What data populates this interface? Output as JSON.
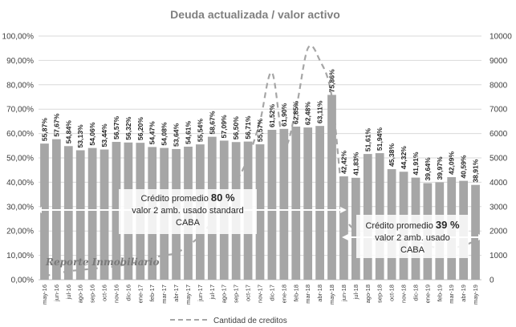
{
  "chart_data": {
    "type": "bar",
    "title": "Deuda actualizada / valor activo",
    "categories": [
      "may-16",
      "jun-16",
      "jul-16",
      "ago-16",
      "sep-16",
      "oct-16",
      "nov-16",
      "dic-16",
      "ene-17",
      "feb-17",
      "mar-17",
      "abr-17",
      "may-17",
      "jun-17",
      "jul-17",
      "ago-17",
      "sep-17",
      "oct-17",
      "nov-17",
      "dic-17",
      "ene-18",
      "feb-18",
      "mar-18",
      "abr-18",
      "may-18",
      "jun-18",
      "jul-18",
      "ago-18",
      "sep-18",
      "oct-18",
      "nov-18",
      "dic-18",
      "ene-19",
      "feb-19",
      "mar-19",
      "abr-19",
      "may-19"
    ],
    "series": [
      {
        "values": [
          55.87,
          57.67,
          54.84,
          53.13,
          54.06,
          53.44,
          56.57,
          56.32,
          56.2,
          54.47,
          54.08,
          53.64,
          54.61,
          55.54,
          58.67,
          57.09,
          56.5,
          56.71,
          55.57,
          61.52,
          61.9,
          62.85,
          62.48,
          63.11,
          75.86,
          42.42,
          41.83,
          51.61,
          51.94,
          45.38,
          44.32,
          41.91,
          39.64,
          39.97,
          42.09,
          40.59,
          38.91
        ],
        "labels": [
          "55,87%",
          "57,67%",
          "54,84%",
          "53,13%",
          "54,06%",
          "53,44%",
          "56,57%",
          "56,32%",
          "56,20%",
          "54,47%",
          "54,08%",
          "53,64%",
          "54,61%",
          "55,54%",
          "58,67%",
          "57,09%",
          "56,50%",
          "56,71%",
          "55,57%",
          "61,52%",
          "61,90%",
          "62,85%",
          "62,48%",
          "63,11%",
          "75,86%",
          "42,42%",
          "41,83%",
          "51,61%",
          "51,94%",
          "45,38%",
          "44,32%",
          "41,91%",
          "39,64%",
          "39,97%",
          "42,09%",
          "40,59%",
          "38,91%"
        ],
        "color": "#a6a6a6",
        "axis": "left"
      },
      {
        "name": "Cantidad de creditos",
        "type": "line",
        "style": "dashed",
        "color": "#a6a6a6",
        "axis": "right",
        "values": [
          150,
          250,
          350,
          400,
          450,
          500,
          550,
          650,
          750,
          900,
          1000,
          1100,
          1400,
          1800,
          2400,
          3200,
          4000,
          5000,
          6500,
          8500,
          5500,
          7000,
          9500,
          9000,
          7500,
          3000,
          2000,
          1800,
          1600,
          1600,
          1700,
          1600,
          1400,
          1300,
          1300,
          1400,
          1600
        ]
      }
    ],
    "y_left": {
      "ylim": [
        0,
        100
      ],
      "ticks": [
        "0,00%",
        "10,00%",
        "20,00%",
        "30,00%",
        "40,00%",
        "50,00%",
        "60,00%",
        "70,00%",
        "80,00%",
        "90,00%",
        "100,00%"
      ]
    },
    "y_right": {
      "ylim": [
        0,
        10000
      ],
      "ticks": [
        "0",
        "1000",
        "2000",
        "3000",
        "4000",
        "5000",
        "6000",
        "7000",
        "8000",
        "9000",
        "10000"
      ]
    },
    "grid": true,
    "legend": {
      "position": "bottom",
      "entries": [
        "Cantidad de creditos"
      ]
    },
    "annotations": [
      {
        "id": "anno1",
        "line1_prefix": "Crédito promedio ",
        "line1_value": "80 %",
        "line2": "valor 2 amb. usado standard",
        "line3": "CABA"
      },
      {
        "id": "anno2",
        "line1_prefix": "Crédito promedio ",
        "line1_value": "39 %",
        "line2": "valor 2 amb. usado",
        "line3": "CABA"
      }
    ],
    "watermark": "Reporte Inmobiliario"
  }
}
